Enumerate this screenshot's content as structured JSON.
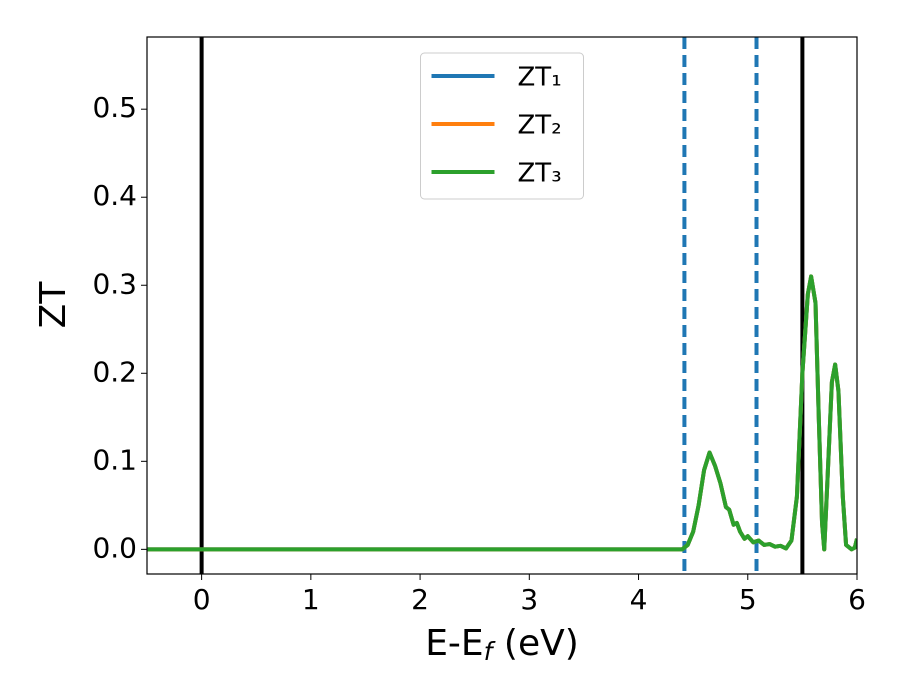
{
  "chart_data": {
    "type": "line",
    "ylabel": "ZT",
    "xlabel": [
      "E-E",
      "f",
      " (eV)"
    ],
    "xlim": [
      -0.5,
      6.0
    ],
    "ylim": [
      -0.028,
      0.582
    ],
    "xticks": [
      0,
      1,
      2,
      3,
      4,
      5,
      6
    ],
    "yticks": [
      {
        "value": 0,
        "label": "0.0"
      },
      {
        "value": 0.1,
        "label": "0.1"
      },
      {
        "value": 0.2,
        "label": "0.2"
      },
      {
        "value": 0.3,
        "label": "0.3"
      },
      {
        "value": 0.4,
        "label": "0.4"
      },
      {
        "value": 0.5,
        "label": "0.5"
      }
    ],
    "grid": false,
    "legend": "upper center",
    "vlines": [
      {
        "x": 0,
        "color": "#000000",
        "style": "solid"
      },
      {
        "x": 5.5,
        "color": "#000000",
        "style": "solid"
      },
      {
        "x": 4.42,
        "color": "#1f77b4",
        "style": "dashed"
      },
      {
        "x": 5.08,
        "color": "#1f77b4",
        "style": "dashed"
      }
    ],
    "x": [
      -0.5,
      4.4,
      4.45,
      4.5,
      4.55,
      4.6,
      4.65,
      4.7,
      4.75,
      4.8,
      4.83,
      4.87,
      4.9,
      4.93,
      4.97,
      5.0,
      5.05,
      5.1,
      5.15,
      5.2,
      5.25,
      5.3,
      5.35,
      5.4,
      5.45,
      5.5,
      5.55,
      5.58,
      5.62,
      5.65,
      5.68,
      5.7,
      5.73,
      5.77,
      5.8,
      5.83,
      5.87,
      5.9,
      5.95,
      5.98,
      6.0
    ],
    "series": [
      {
        "name": "ZT₁",
        "color": "#1f77b4",
        "values": [
          0,
          0,
          0.005,
          0.02,
          0.05,
          0.09,
          0.11,
          0.095,
          0.075,
          0.048,
          0.045,
          0.028,
          0.03,
          0.02,
          0.012,
          0.015,
          0.008,
          0.01,
          0.005,
          0.006,
          0.003,
          0.004,
          0.001,
          0.01,
          0.06,
          0.2,
          0.29,
          0.31,
          0.28,
          0.15,
          0.03,
          0,
          0.08,
          0.19,
          0.21,
          0.18,
          0.06,
          0.005,
          0,
          0.002,
          0.012
        ]
      },
      {
        "name": "ZT₂",
        "color": "#ff7f0e",
        "values": [
          0,
          0,
          0.005,
          0.02,
          0.05,
          0.09,
          0.11,
          0.095,
          0.075,
          0.048,
          0.045,
          0.028,
          0.03,
          0.02,
          0.012,
          0.015,
          0.008,
          0.01,
          0.005,
          0.006,
          0.003,
          0.004,
          0.001,
          0.01,
          0.06,
          0.2,
          0.29,
          0.31,
          0.28,
          0.15,
          0.03,
          0,
          0.08,
          0.19,
          0.21,
          0.18,
          0.06,
          0.005,
          0,
          0.002,
          0.012
        ]
      },
      {
        "name": "ZT₃",
        "color": "#2ca02c",
        "values": [
          0,
          0,
          0.005,
          0.02,
          0.05,
          0.09,
          0.11,
          0.095,
          0.075,
          0.048,
          0.045,
          0.028,
          0.03,
          0.02,
          0.012,
          0.015,
          0.008,
          0.01,
          0.005,
          0.006,
          0.003,
          0.004,
          0.001,
          0.01,
          0.06,
          0.2,
          0.29,
          0.31,
          0.28,
          0.15,
          0.03,
          0,
          0.08,
          0.19,
          0.21,
          0.18,
          0.06,
          0.005,
          0,
          0.002,
          0.012
        ]
      }
    ]
  }
}
